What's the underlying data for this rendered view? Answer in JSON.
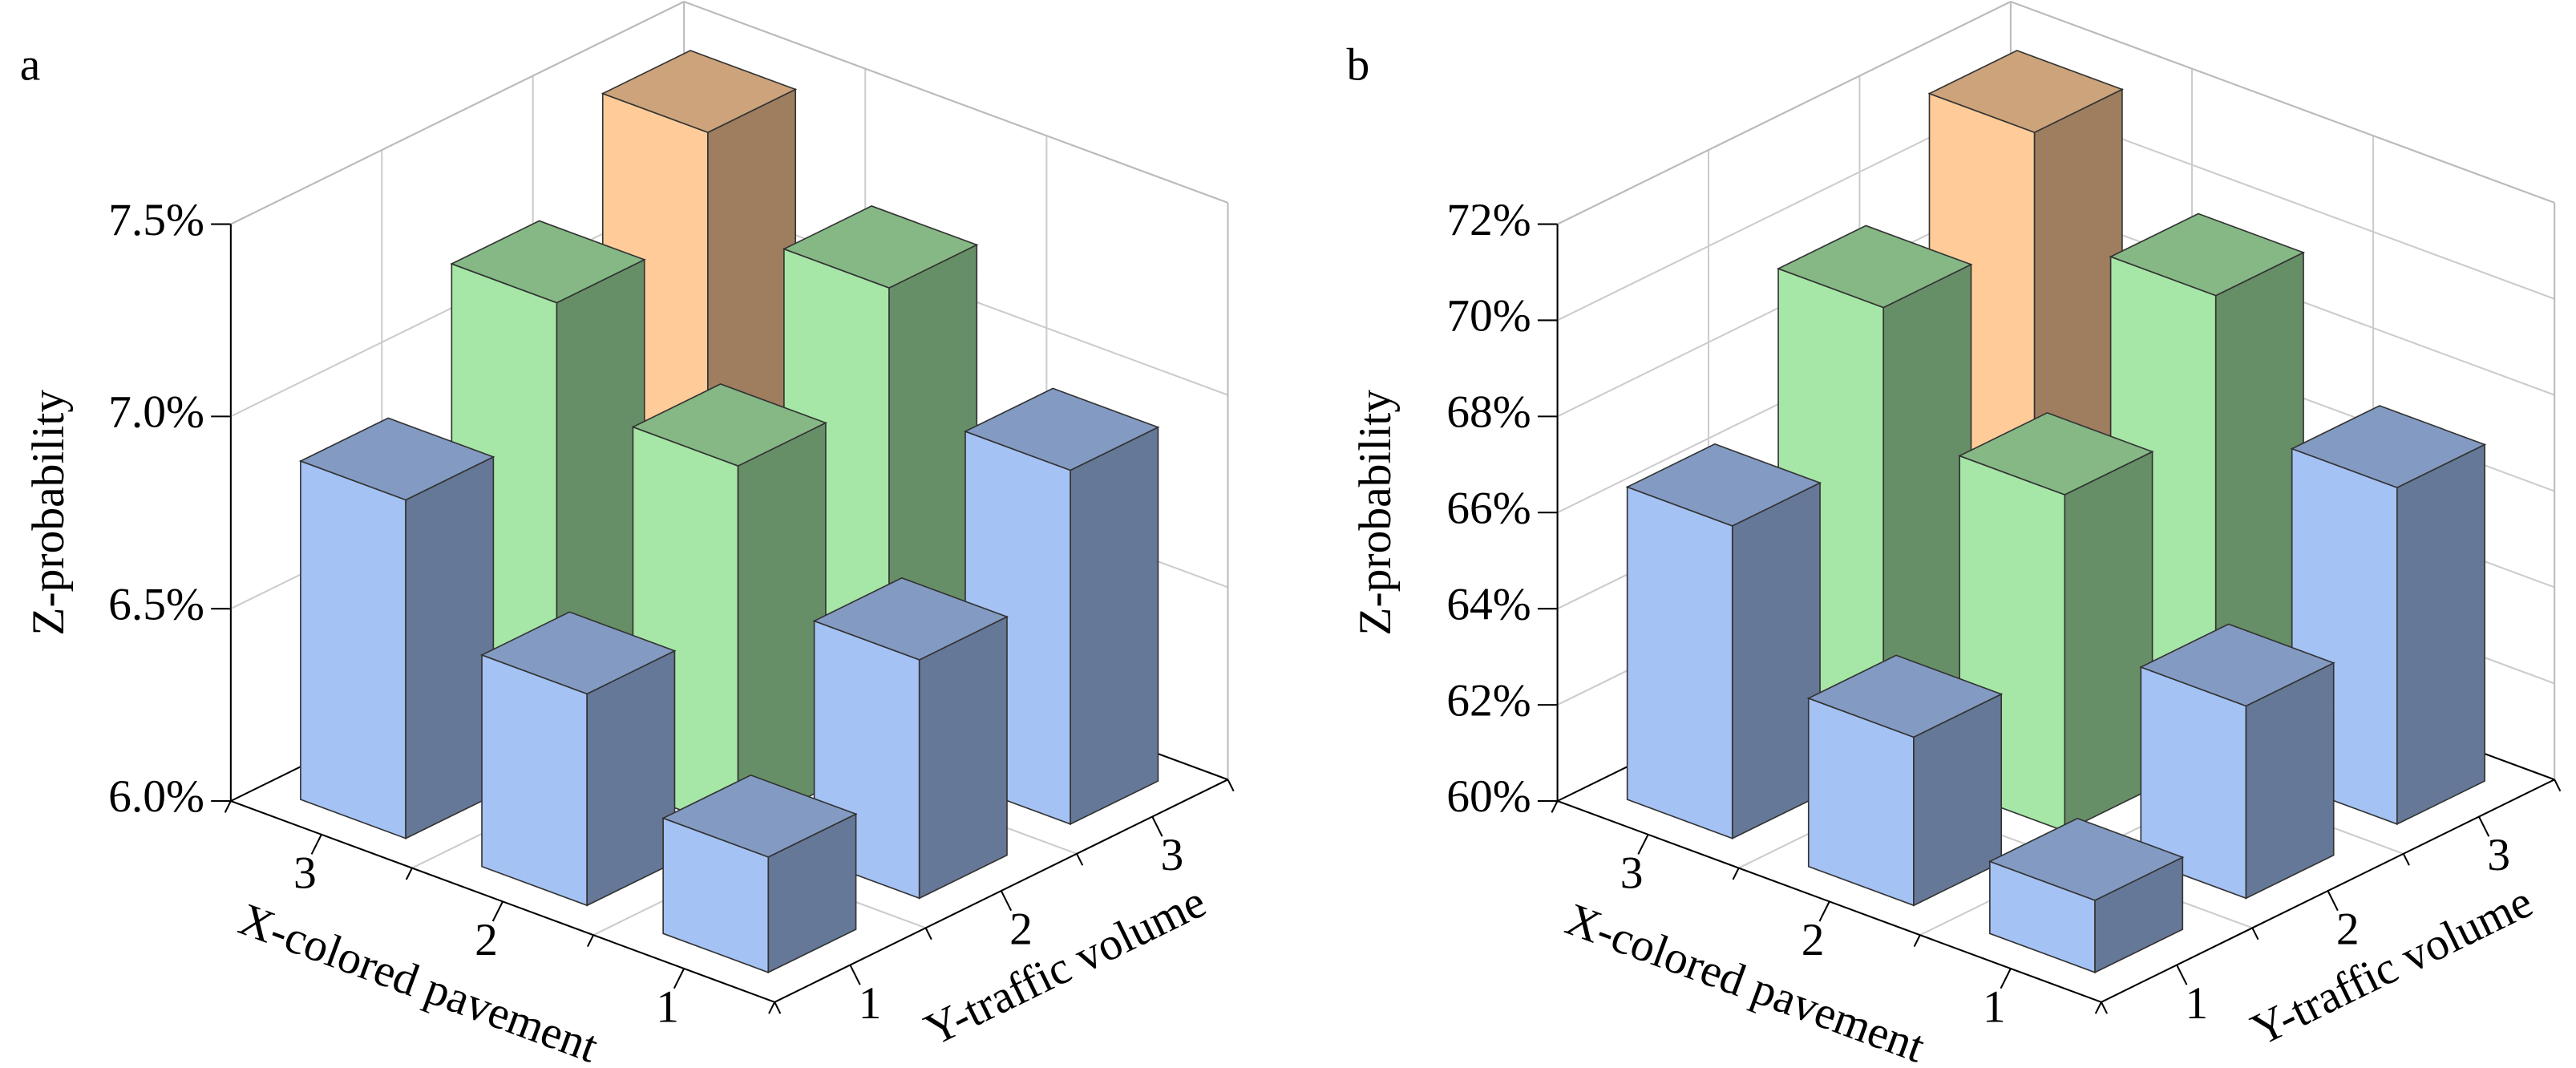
{
  "chart_data": [
    {
      "type": "bar3d",
      "panel_label": "a",
      "x_label": "X-colored pavement",
      "y_label": "Y-traffic volume",
      "z_label": "Z-probability",
      "x_categories": [
        "1",
        "2",
        "3"
      ],
      "y_categories": [
        "1",
        "2",
        "3"
      ],
      "values": [
        [
          6.3,
          6.62,
          6.92
        ],
        [
          6.55,
          6.95,
          7.22
        ],
        [
          6.88,
          7.2,
          7.45
        ]
      ],
      "colors": [
        [
          "#a4c2f4",
          "#a4c2f4",
          "#a4c2f4"
        ],
        [
          "#a4c2f4",
          "#a6e6a6",
          "#a6e6a6"
        ],
        [
          "#a4c2f4",
          "#a6e6a6",
          "#ffcc99"
        ]
      ],
      "zlim": [
        6.0,
        7.5
      ],
      "zticks": [
        {
          "value": 6.0,
          "label": "6.0%"
        },
        {
          "value": 6.5,
          "label": "6.5%"
        },
        {
          "value": 7.0,
          "label": "7.0%"
        },
        {
          "value": 7.5,
          "label": "7.5%"
        }
      ],
      "grid": true
    },
    {
      "type": "bar3d",
      "panel_label": "b",
      "x_label": "X-colored pavement",
      "y_label": "Y-traffic volume",
      "z_label": "Z-probability",
      "x_categories": [
        "1",
        "2",
        "3"
      ],
      "y_categories": [
        "1",
        "2",
        "3"
      ],
      "values": [
        [
          61.5,
          64,
          67
        ],
        [
          63.5,
          67,
          69.6
        ],
        [
          66.5,
          69.5,
          71.6
        ]
      ],
      "colors": [
        [
          "#a4c2f4",
          "#a4c2f4",
          "#a4c2f4"
        ],
        [
          "#a4c2f4",
          "#a6e6a6",
          "#a6e6a6"
        ],
        [
          "#a4c2f4",
          "#a6e6a6",
          "#ffcc99"
        ]
      ],
      "zlim": [
        60,
        72
      ],
      "zticks": [
        {
          "value": 60,
          "label": "60%"
        },
        {
          "value": 62,
          "label": "62%"
        },
        {
          "value": 64,
          "label": "64%"
        },
        {
          "value": 66,
          "label": "66%"
        },
        {
          "value": 68,
          "label": "68%"
        },
        {
          "value": 70,
          "label": "70%"
        },
        {
          "value": 72,
          "label": "72%"
        }
      ],
      "grid": true
    }
  ]
}
